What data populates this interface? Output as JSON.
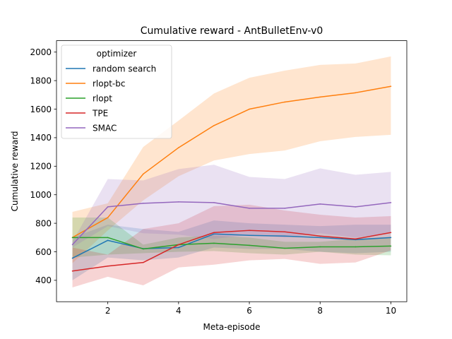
{
  "chart_data": {
    "type": "line",
    "title": "Cumulative reward - AntBulletEnv-v0",
    "xlabel": "Meta-episode",
    "ylabel": "Cumulative reward",
    "x": [
      1,
      2,
      3,
      4,
      5,
      6,
      7,
      8,
      9,
      10
    ],
    "xlim": [
      0.55,
      10.45
    ],
    "ylim": [
      250,
      2080
    ],
    "xticks": [
      2,
      4,
      6,
      8,
      10
    ],
    "yticks": [
      400,
      600,
      800,
      1000,
      1200,
      1400,
      1600,
      1800,
      2000
    ],
    "legend": {
      "title": "optimizer",
      "position": "upper-left"
    },
    "grid": false,
    "series": [
      {
        "name": "random search",
        "color": "#1f77b4",
        "values": [
          555,
          680,
          622,
          630,
          725,
          715,
          710,
          700,
          685,
          700
        ],
        "lower": [
          400,
          560,
          540,
          560,
          630,
          620,
          620,
          600,
          590,
          600
        ],
        "upper": [
          700,
          790,
          760,
          740,
          820,
          800,
          790,
          780,
          790,
          790
        ]
      },
      {
        "name": "rlopt-bc",
        "color": "#ff7f0e",
        "values": [
          700,
          840,
          1145,
          1330,
          1485,
          1600,
          1650,
          1685,
          1715,
          1760
        ],
        "lower": [
          520,
          750,
          960,
          1130,
          1240,
          1285,
          1310,
          1375,
          1405,
          1420
        ],
        "upper": [
          880,
          940,
          1335,
          1520,
          1710,
          1820,
          1870,
          1910,
          1920,
          1970
        ]
      },
      {
        "name": "rlopt",
        "color": "#2ca02c",
        "values": [
          700,
          700,
          620,
          650,
          660,
          645,
          625,
          635,
          635,
          640
        ],
        "lower": [
          560,
          580,
          590,
          600,
          605,
          590,
          580,
          600,
          580,
          575
        ],
        "upper": [
          840,
          840,
          650,
          700,
          715,
          700,
          670,
          670,
          690,
          705
        ]
      },
      {
        "name": "TPE",
        "color": "#d62728",
        "values": [
          465,
          500,
          525,
          650,
          735,
          750,
          740,
          710,
          690,
          735
        ],
        "lower": [
          350,
          425,
          365,
          490,
          510,
          540,
          550,
          515,
          525,
          610
        ],
        "upper": [
          630,
          580,
          760,
          800,
          920,
          930,
          890,
          860,
          840,
          850
        ]
      },
      {
        "name": "SMAC",
        "color": "#9467bd",
        "values": [
          650,
          915,
          940,
          950,
          945,
          905,
          905,
          935,
          915,
          945
        ],
        "lower": [
          630,
          780,
          730,
          720,
          690,
          720,
          700,
          730,
          700,
          730
        ],
        "upper": [
          670,
          1110,
          1100,
          1180,
          1210,
          1125,
          1110,
          1185,
          1140,
          1160
        ]
      }
    ]
  }
}
